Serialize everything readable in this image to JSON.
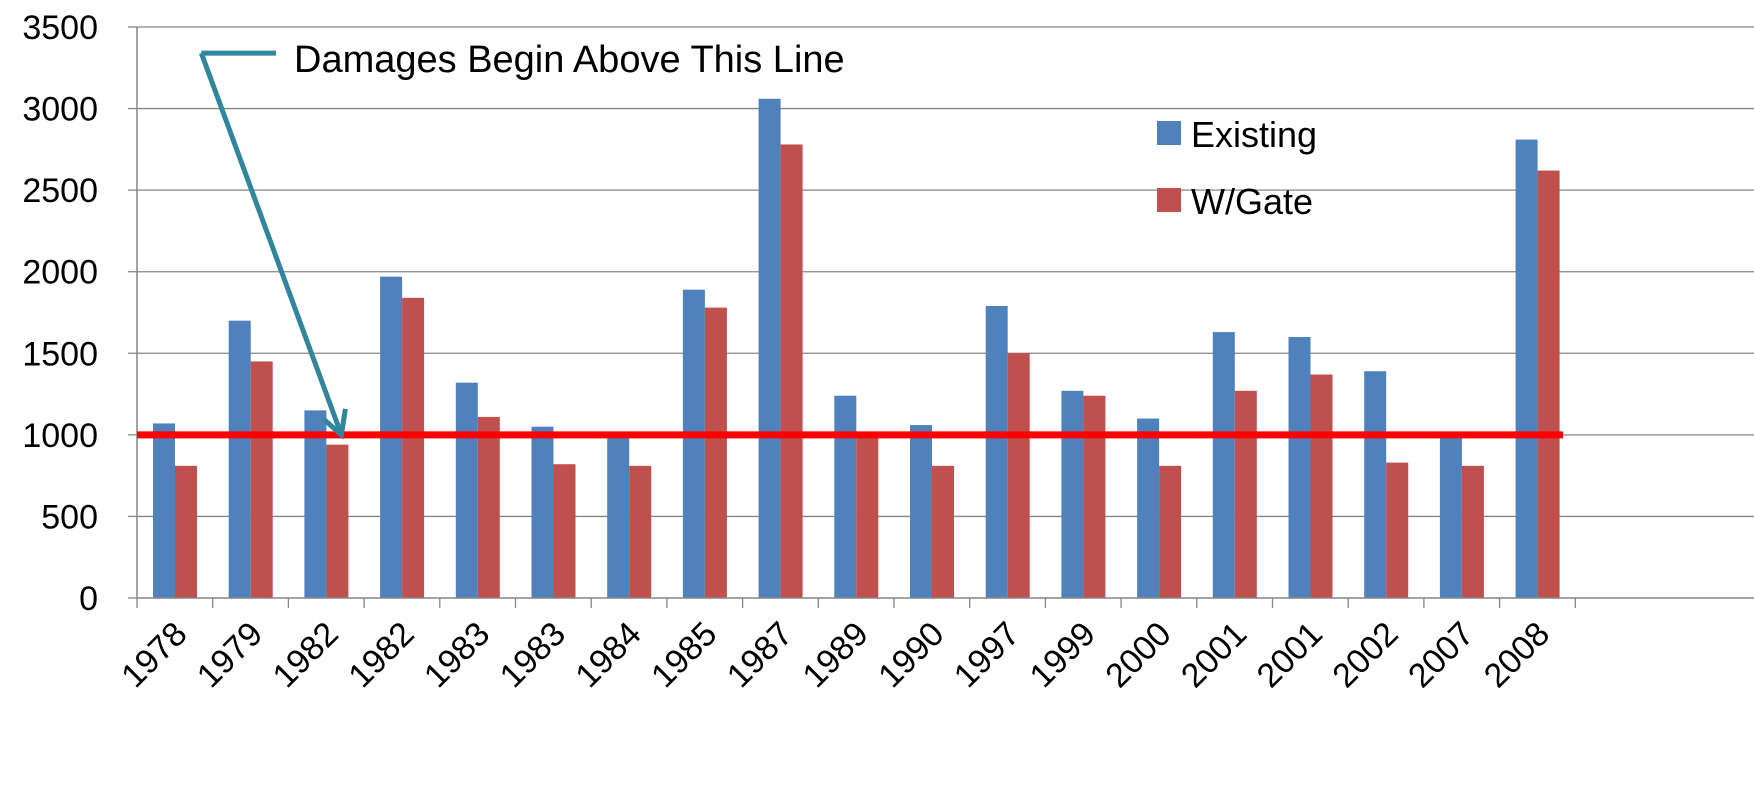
{
  "chart_data": {
    "type": "bar",
    "title": "",
    "xlabel": "",
    "ylabel": "",
    "ylim": [
      0,
      3500
    ],
    "y_ticks": [
      0,
      500,
      1000,
      1500,
      2000,
      2500,
      3000,
      3500
    ],
    "grid": "horizontal",
    "legend_position": "top-right",
    "categories": [
      "1978",
      "1979",
      "1982",
      "1982",
      "1983",
      "1983",
      "1984",
      "1985",
      "1987",
      "1989",
      "1990",
      "1997",
      "1999",
      "2000",
      "2001",
      "2001",
      "2002",
      "2007",
      "2008"
    ],
    "series": [
      {
        "name": "Existing",
        "color": "#4F81BD",
        "values": [
          1070,
          1700,
          1150,
          1970,
          1320,
          1050,
          1010,
          1890,
          3060,
          1240,
          1060,
          1790,
          1270,
          1100,
          1630,
          1600,
          1390,
          1010,
          2810
        ]
      },
      {
        "name": "W/Gate",
        "color": "#C0504D",
        "values": [
          810,
          1450,
          940,
          1840,
          1110,
          820,
          810,
          1780,
          2780,
          1010,
          810,
          1500,
          1240,
          810,
          1270,
          1370,
          830,
          810,
          2620
        ]
      }
    ],
    "threshold": {
      "value": 1000,
      "color": "#FF0000"
    },
    "annotation": {
      "text": "Damages Begin Above This Line",
      "arrow_color": "#31859C",
      "arrow_tail": [
        0.85,
        3340
      ],
      "arrow_head": [
        2.7,
        1000
      ]
    }
  }
}
